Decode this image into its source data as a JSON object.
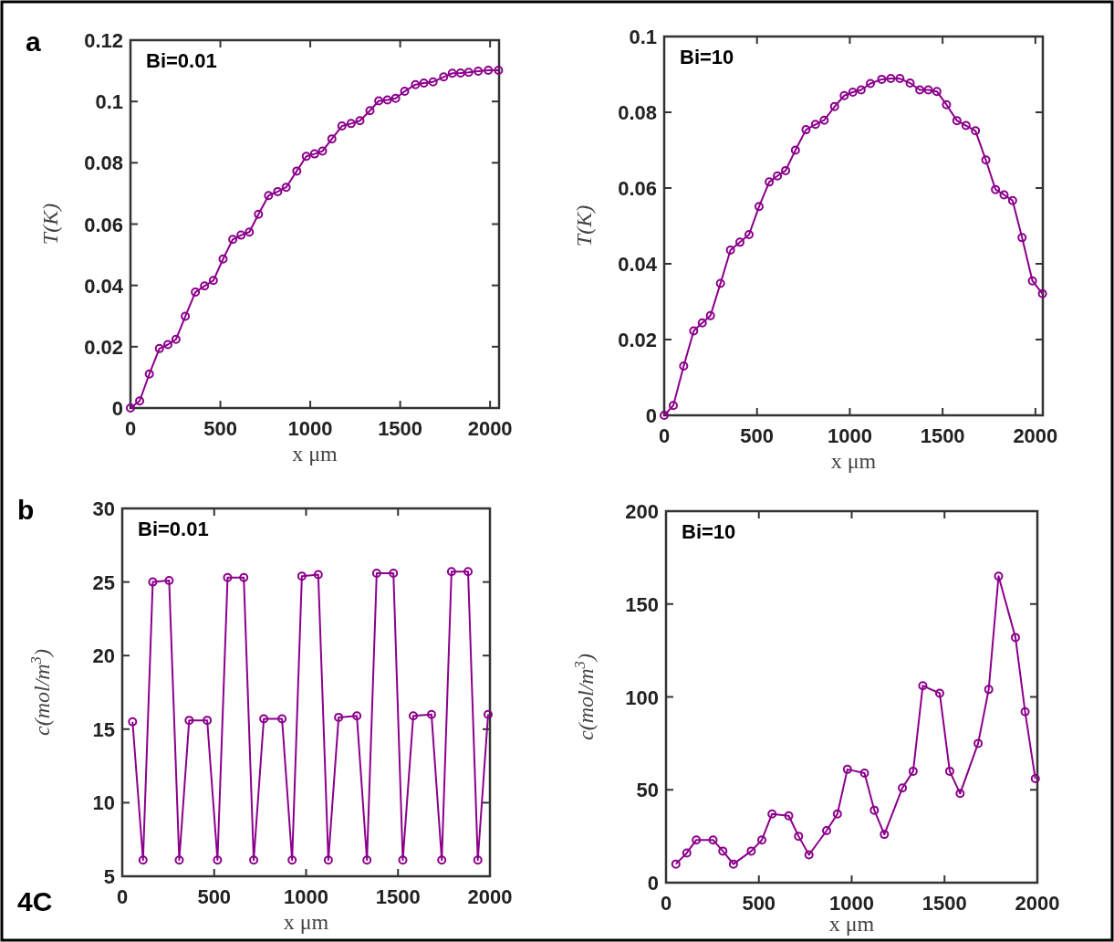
{
  "chart_data": [
    {
      "type": "line",
      "title": "Bi=0.01",
      "xlabel": "x μm",
      "ylabel": "T(K)",
      "annotations": [
        "a"
      ],
      "marker": "circle",
      "line_style": "solid",
      "xlim": [
        0,
        2050
      ],
      "xticks": [
        0,
        500,
        1000,
        1500,
        2000
      ],
      "ylim": [
        0,
        0.12
      ],
      "yticks": [
        0,
        0.02,
        0.04,
        0.06,
        0.08,
        0.1,
        0.12
      ],
      "series": [
        {
          "color": "#8b008b",
          "x": [
            0,
            51,
            105,
            161,
            208,
            253,
            305,
            361,
            412,
            461,
            515,
            569,
            615,
            661,
            712,
            768,
            819,
            866,
            925,
            978,
            1024,
            1068,
            1120,
            1176,
            1227,
            1276,
            1332,
            1381,
            1429,
            1475,
            1525,
            1585,
            1632,
            1683,
            1742,
            1790,
            1836,
            1881,
            1934,
            1990,
            2047
          ],
          "values": [
            0,
            0.0023,
            0.0111,
            0.0194,
            0.0207,
            0.0224,
            0.0299,
            0.0378,
            0.0398,
            0.0416,
            0.0486,
            0.055,
            0.0564,
            0.0574,
            0.0632,
            0.0693,
            0.0706,
            0.072,
            0.0773,
            0.0821,
            0.0829,
            0.0838,
            0.0878,
            0.092,
            0.0928,
            0.0937,
            0.097,
            0.1002,
            0.1005,
            0.101,
            0.1033,
            0.1055,
            0.106,
            0.1064,
            0.108,
            0.1092,
            0.1093,
            0.1095,
            0.1099,
            0.1102,
            0.1102
          ]
        }
      ]
    },
    {
      "type": "line",
      "title": "Bi=10",
      "xlabel": "x μm",
      "ylabel": "T(K)",
      "marker": "circle",
      "line_style": "solid",
      "xlim": [
        0,
        2040
      ],
      "xticks": [
        0,
        500,
        1000,
        1500,
        2000
      ],
      "ylim": [
        0,
        0.1
      ],
      "yticks": [
        0,
        0.02,
        0.04,
        0.06,
        0.08,
        0.1
      ],
      "series": [
        {
          "color": "#8b008b",
          "x": [
            0,
            49,
            105,
            159,
            205,
            249,
            303,
            357,
            408,
            457,
            511,
            566,
            610,
            654,
            707,
            764,
            815,
            862,
            918,
            970,
            1016,
            1061,
            1111,
            1172,
            1221,
            1270,
            1325,
            1377,
            1423,
            1469,
            1521,
            1577,
            1626,
            1677,
            1733,
            1785,
            1831,
            1877,
            1928,
            1984,
            2038
          ],
          "values": [
            0,
            0.0026,
            0.013,
            0.0223,
            0.0244,
            0.0263,
            0.0348,
            0.0436,
            0.0457,
            0.0477,
            0.0551,
            0.0616,
            0.0632,
            0.0646,
            0.07,
            0.0754,
            0.0768,
            0.0779,
            0.0815,
            0.0844,
            0.0853,
            0.0859,
            0.0876,
            0.0887,
            0.0889,
            0.0889,
            0.0877,
            0.0859,
            0.0859,
            0.0855,
            0.082,
            0.0778,
            0.0765,
            0.0751,
            0.0674,
            0.0596,
            0.0582,
            0.0567,
            0.0469,
            0.0355,
            0.0321
          ]
        }
      ]
    },
    {
      "type": "line",
      "title": "Bi=0.01",
      "xlabel": "x μm",
      "ylabel": "c(mol/m$^{3}$)",
      "annotations": [
        "b",
        "4C"
      ],
      "marker": "circle",
      "line_style": "solid",
      "xlim": [
        0,
        2000
      ],
      "xticks": [
        0,
        500,
        1000,
        1500,
        2000
      ],
      "ylim": [
        5,
        30
      ],
      "yticks": [
        5,
        10,
        15,
        20,
        25,
        30
      ],
      "series": [
        {
          "color": "#8b008b",
          "x": [
            56,
            113,
            166,
            255,
            310,
            364,
            462,
            518,
            573,
            661,
            715,
            770,
            869,
            924,
            977,
            1066,
            1121,
            1177,
            1276,
            1331,
            1384,
            1475,
            1526,
            1583,
            1682,
            1738,
            1791,
            1881,
            1934,
            1990
          ],
          "values": [
            15.5,
            6.1,
            25.0,
            25.1,
            6.1,
            15.6,
            15.6,
            6.1,
            25.3,
            25.3,
            6.1,
            15.7,
            15.7,
            6.1,
            25.4,
            25.5,
            6.1,
            15.8,
            15.9,
            6.1,
            25.6,
            25.6,
            6.1,
            15.9,
            16.0,
            6.1,
            25.7,
            25.7,
            6.1,
            16.0
          ]
        }
      ]
    },
    {
      "type": "line",
      "title": "Bi=10",
      "xlabel": "x μm",
      "ylabel": "c(mol/m$^{3}$)",
      "marker": "circle",
      "line_style": "solid",
      "xlim": [
        0,
        2000
      ],
      "xticks": [
        0,
        500,
        1000,
        1500,
        2000
      ],
      "ylim": [
        0,
        200
      ],
      "yticks": [
        0,
        50,
        100,
        150,
        200
      ],
      "series": [
        {
          "color": "#8b008b",
          "x": [
            53,
            112,
            163,
            253,
            306,
            363,
            459,
            516,
            571,
            661,
            714,
            770,
            865,
            923,
            977,
            1069,
            1122,
            1176,
            1273,
            1331,
            1383,
            1474,
            1528,
            1584,
            1681,
            1738,
            1791,
            1882,
            1934,
            1989
          ],
          "values": [
            10,
            16,
            23,
            23,
            17,
            10,
            17,
            23,
            37,
            36,
            25,
            15,
            28,
            37,
            61,
            59,
            39,
            26,
            51,
            60,
            106,
            102,
            60,
            48,
            75,
            104,
            165,
            132,
            92,
            56
          ]
        }
      ]
    }
  ]
}
